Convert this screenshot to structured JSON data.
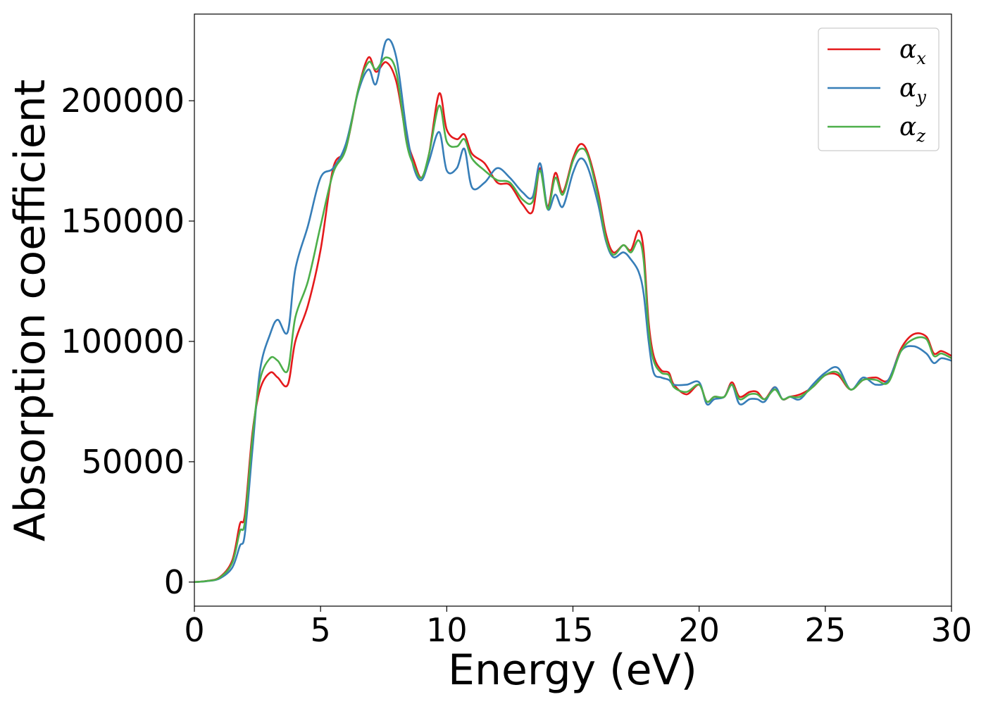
{
  "chart_data": {
    "type": "line",
    "xlabel": "Energy (eV)",
    "ylabel": "Absorption coefficient",
    "xlim": [
      0,
      30
    ],
    "ylim": [
      -10000,
      236000
    ],
    "xticks": [
      "0",
      "5",
      "10",
      "15",
      "20",
      "25",
      "30"
    ],
    "yticks": [
      "0",
      "50000",
      "100000",
      "150000",
      "200000"
    ],
    "grid": false,
    "legend_position": "top-right",
    "x": [
      0,
      0.5,
      1,
      1.5,
      1.8,
      2,
      2.3,
      2.6,
      3,
      3.3,
      3.7,
      4,
      4.5,
      5,
      5.5,
      6,
      6.5,
      6.9,
      7.2,
      7.6,
      8,
      8.4,
      8.7,
      9,
      9.3,
      9.7,
      10,
      10.4,
      10.7,
      11,
      11.5,
      12,
      12.5,
      13,
      13.4,
      13.7,
      14,
      14.3,
      14.6,
      15,
      15.3,
      15.6,
      16,
      16.3,
      16.6,
      17,
      17.3,
      17.6,
      17.8,
      18,
      18.2,
      18.5,
      18.8,
      19,
      19.5,
      20,
      20.3,
      20.6,
      21,
      21.3,
      21.6,
      22,
      22.3,
      22.6,
      23,
      23.3,
      23.6,
      24,
      24.5,
      25,
      25.5,
      26,
      26.5,
      27,
      27.5,
      28,
      28.5,
      29,
      29.3,
      29.6,
      30
    ],
    "series": [
      {
        "name": "α",
        "subscript": "x",
        "color": "#e41a1c",
        "values": [
          0,
          500,
          2000,
          9000,
          24000,
          28000,
          62000,
          80000,
          87000,
          85000,
          82000,
          100000,
          115000,
          138000,
          172000,
          180000,
          205000,
          218000,
          212000,
          216000,
          208000,
          185000,
          175000,
          168000,
          178000,
          203000,
          188000,
          184000,
          186000,
          178000,
          174000,
          166000,
          165000,
          157000,
          154000,
          172000,
          156000,
          170000,
          162000,
          176000,
          182000,
          178000,
          162000,
          145000,
          137000,
          140000,
          138000,
          146000,
          138000,
          108000,
          94000,
          88000,
          87000,
          82000,
          78000,
          82000,
          75000,
          77000,
          77000,
          83000,
          77000,
          79000,
          79000,
          76000,
          81000,
          76000,
          77000,
          78000,
          81000,
          86000,
          86000,
          80000,
          84000,
          85000,
          84000,
          97000,
          103000,
          102000,
          95000,
          96000,
          94000
        ]
      },
      {
        "name": "α",
        "subscript": "y",
        "color": "#377eb8",
        "values": [
          0,
          400,
          1500,
          6000,
          15000,
          20000,
          55000,
          88000,
          103000,
          109000,
          104000,
          130000,
          148000,
          168000,
          172000,
          182000,
          204000,
          213000,
          207000,
          225000,
          218000,
          188000,
          172000,
          167000,
          175000,
          187000,
          171000,
          172000,
          180000,
          164000,
          166000,
          172000,
          168000,
          162000,
          160000,
          174000,
          155000,
          161000,
          156000,
          170000,
          176000,
          172000,
          157000,
          142000,
          135000,
          137000,
          134000,
          129000,
          120000,
          100000,
          87000,
          85000,
          84000,
          82000,
          82000,
          83000,
          74000,
          76000,
          77000,
          82000,
          74000,
          76000,
          76000,
          75000,
          81000,
          76000,
          77000,
          76000,
          82000,
          87000,
          89000,
          80000,
          85000,
          82000,
          84000,
          96000,
          98000,
          95000,
          91000,
          93000,
          92000
        ]
      },
      {
        "name": "α",
        "subscript": "z",
        "color": "#4daf4a",
        "values": [
          0,
          450,
          1800,
          8000,
          21000,
          25000,
          60000,
          84000,
          93000,
          92000,
          88000,
          110000,
          125000,
          148000,
          170000,
          180000,
          205000,
          216000,
          213000,
          218000,
          212000,
          183000,
          173000,
          168000,
          178000,
          198000,
          183000,
          181000,
          184000,
          176000,
          171000,
          167000,
          166000,
          159000,
          158000,
          171000,
          155000,
          168000,
          161000,
          175000,
          180000,
          177000,
          160000,
          143000,
          136000,
          140000,
          137000,
          142000,
          134000,
          105000,
          92000,
          87000,
          86000,
          81000,
          79000,
          82000,
          75000,
          77000,
          77000,
          82000,
          76000,
          78000,
          78000,
          76000,
          80000,
          76000,
          77000,
          77000,
          81000,
          86000,
          87000,
          80000,
          84000,
          84000,
          83000,
          96000,
          101000,
          101000,
          94000,
          95000,
          93000
        ]
      }
    ]
  }
}
